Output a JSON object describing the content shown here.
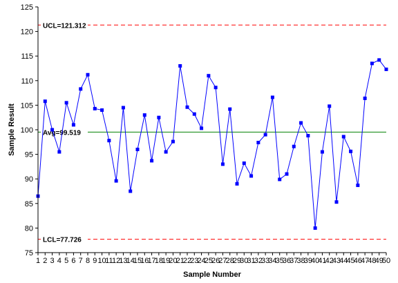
{
  "chart_data": {
    "type": "line",
    "title": "",
    "xlabel": "Sample Number",
    "ylabel": "Sample Result",
    "xlim": [
      1,
      50
    ],
    "ylim": [
      75,
      125
    ],
    "y_ticks": [
      75,
      80,
      85,
      90,
      95,
      100,
      105,
      110,
      115,
      120,
      125
    ],
    "x_ticks": [
      1,
      2,
      3,
      4,
      5,
      6,
      7,
      8,
      9,
      10,
      11,
      12,
      13,
      14,
      15,
      16,
      17,
      18,
      19,
      20,
      21,
      22,
      23,
      24,
      25,
      26,
      27,
      28,
      29,
      30,
      31,
      32,
      33,
      34,
      35,
      36,
      37,
      38,
      39,
      40,
      41,
      42,
      43,
      44,
      45,
      46,
      47,
      48,
      49,
      50
    ],
    "grid": false,
    "series": [
      {
        "x": [
          1,
          2,
          3,
          4,
          5,
          6,
          7,
          8,
          9,
          10,
          11,
          12,
          13,
          14,
          15,
          16,
          17,
          18,
          19,
          20,
          21,
          22,
          23,
          24,
          25,
          26,
          27,
          28,
          29,
          30,
          31,
          32,
          33,
          34,
          35,
          36,
          37,
          38,
          39,
          40,
          41,
          42,
          43,
          44,
          45,
          46,
          47,
          48,
          49,
          50
        ],
        "values": [
          86.5,
          105.8,
          100.0,
          95.5,
          105.5,
          101.0,
          108.3,
          111.2,
          104.3,
          104.0,
          97.8,
          89.6,
          104.5,
          87.5,
          96.0,
          103.0,
          93.7,
          102.5,
          95.5,
          97.6,
          113.0,
          104.6,
          103.2,
          100.3,
          111.0,
          108.6,
          93.0,
          104.2,
          89.0,
          93.2,
          90.6,
          97.4,
          99.0,
          106.6,
          89.9,
          91.0,
          96.6,
          101.4,
          98.8,
          80.0,
          95.5,
          104.8,
          85.3,
          98.6,
          95.6,
          88.7,
          106.4,
          113.5,
          114.2,
          112.3
        ],
        "color": "#0000ff"
      }
    ],
    "reference_lines": [
      {
        "label": "UCL=121.312",
        "value": 121.312,
        "color": "#ff0000",
        "style": "dashed"
      },
      {
        "label": "Avg=99.519",
        "value": 99.519,
        "color": "#008000",
        "style": "solid"
      },
      {
        "label": "LCL=77.726",
        "value": 77.726,
        "color": "#ff0000",
        "style": "dashed"
      }
    ]
  }
}
